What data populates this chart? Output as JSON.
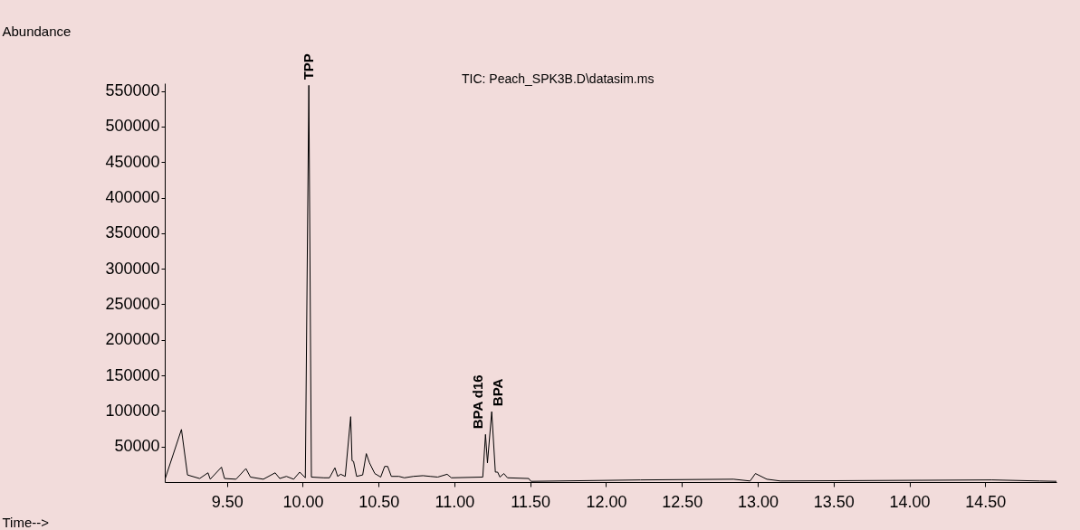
{
  "chart_data": {
    "type": "line",
    "xlabel": "Time-->",
    "ylabel": "Abundance",
    "xlim": [
      9.09,
      14.97
    ],
    "ylim": [
      0,
      561000
    ],
    "xticks": [
      {
        "value": 9.5,
        "label": "9.50"
      },
      {
        "value": 10,
        "label": "10.00"
      },
      {
        "value": 10.5,
        "label": "10.50"
      },
      {
        "value": 11,
        "label": "11.00"
      },
      {
        "value": 11.5,
        "label": "11.50"
      },
      {
        "value": 12,
        "label": "12.00"
      },
      {
        "value": 12.5,
        "label": "12.50"
      },
      {
        "value": 13,
        "label": "13.00"
      },
      {
        "value": 13.5,
        "label": "13.50"
      },
      {
        "value": 14,
        "label": "14.00"
      },
      {
        "value": 14.5,
        "label": "14.50"
      }
    ],
    "yticks": [
      50000,
      100000,
      150000,
      200000,
      250000,
      300000,
      350000,
      400000,
      450000,
      500000,
      550000
    ],
    "grid": false,
    "annotations": [
      "TIC: Peach_SPK3B.D\\datasim.ms",
      {
        "text": "TPP",
        "x": 10.04,
        "y": 558000
      },
      {
        "text": "BPA d16",
        "x": 11.205,
        "y": 67000
      },
      {
        "text": "BPA",
        "x": 11.246,
        "y": 99000
      }
    ],
    "series": [
      {
        "color": "#000000",
        "x": [
          9.09,
          9.2,
          9.24,
          9.32,
          9.375,
          9.39,
          9.464,
          9.484,
          9.56,
          9.625,
          9.655,
          9.74,
          9.818,
          9.848,
          9.892,
          9.94,
          9.98,
          10.017,
          10.04,
          10.057,
          10.14,
          10.176,
          10.212,
          10.23,
          10.25,
          10.28,
          10.316,
          10.325,
          10.335,
          10.355,
          10.395,
          10.419,
          10.44,
          10.475,
          10.514,
          10.54,
          10.56,
          10.584,
          10.634,
          10.67,
          10.73,
          10.793,
          10.84,
          10.89,
          10.952,
          10.98,
          11.187,
          11.205,
          11.218,
          11.246,
          11.27,
          11.285,
          11.3,
          11.326,
          11.35,
          11.49,
          11.505,
          12.227,
          12.84,
          12.95,
          12.985,
          13.06,
          13.15,
          14.545,
          14.86,
          14.97
        ],
        "values": [
          3000,
          74000,
          10000,
          5000,
          13000,
          4000,
          21000,
          5000,
          4000,
          19000,
          7000,
          4000,
          13000,
          5000,
          8000,
          4000,
          14000,
          6000,
          558000,
          7000,
          6000,
          6000,
          20000,
          8000,
          11000,
          8000,
          92000,
          30000,
          29000,
          8000,
          10000,
          40000,
          27000,
          12000,
          7000,
          22000,
          22000,
          8000,
          8000,
          6000,
          8000,
          9000,
          8000,
          7000,
          11000,
          6000,
          7000,
          67000,
          27000,
          99000,
          14000,
          14000,
          7000,
          12000,
          6000,
          5000,
          1000,
          3000,
          4000,
          1500,
          12000,
          4000,
          1500,
          3000,
          1500,
          1000
        ]
      }
    ]
  }
}
